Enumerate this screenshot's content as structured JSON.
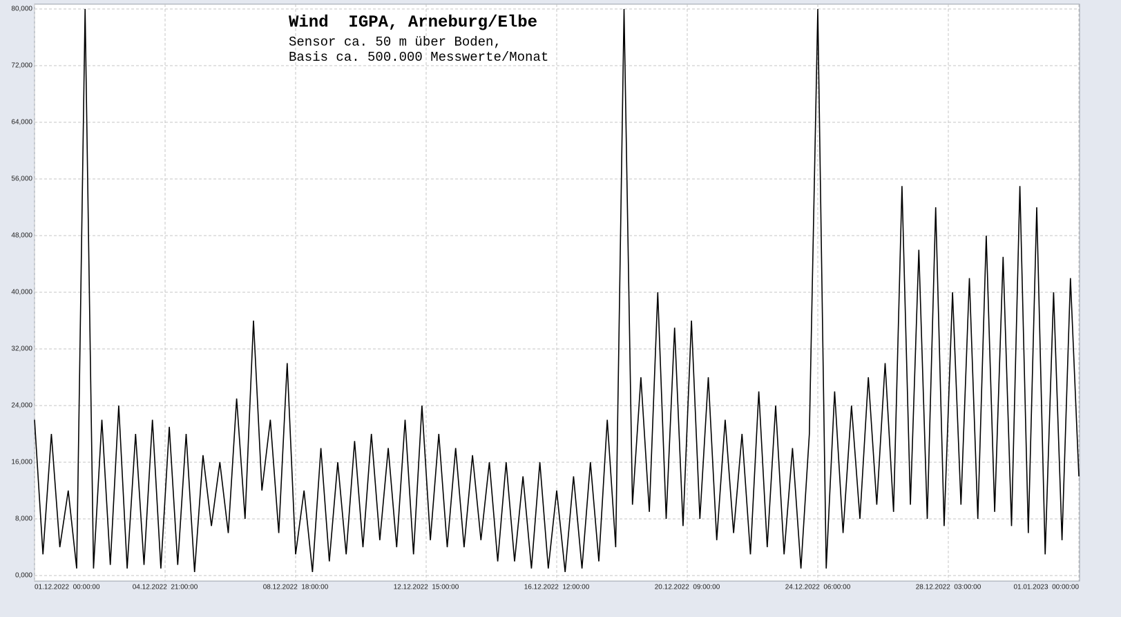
{
  "chart_data": {
    "type": "line",
    "title": "Wind  IGPA, Arneburg/Elbe",
    "subtitle": [
      "Sensor ca. 50 m über Boden,",
      "Basis ca. 500.000 Messwerte/Monat"
    ],
    "color": "#000000",
    "grid": true,
    "xlim": [
      0,
      744
    ],
    "xticks": [
      {
        "value": 0,
        "label": "01.12.2022  00:00:00"
      },
      {
        "value": 93,
        "label": "04.12.2022  21:00:00"
      },
      {
        "value": 186,
        "label": "08.12.2022  18:00:00"
      },
      {
        "value": 279,
        "label": "12.12.2022  15:00:00"
      },
      {
        "value": 372,
        "label": "16.12.2022  12:00:00"
      },
      {
        "value": 465,
        "label": "20.12.2022  09:00:00"
      },
      {
        "value": 558,
        "label": "24.12.2022  06:00:00"
      },
      {
        "value": 651,
        "label": "28.12.2022  03:00:00"
      },
      {
        "value": 744,
        "label": "01.01.2023  00:00:00"
      }
    ],
    "ylim": [
      0,
      80000
    ],
    "yticks": [
      {
        "value": 0,
        "label": "0,000"
      },
      {
        "value": 8000,
        "label": "8,000"
      },
      {
        "value": 16000,
        "label": "16,000"
      },
      {
        "value": 24000,
        "label": "24,000"
      },
      {
        "value": 32000,
        "label": "32,000"
      },
      {
        "value": 40000,
        "label": "40,000"
      },
      {
        "value": 48000,
        "label": "48,000"
      },
      {
        "value": 56000,
        "label": "56,000"
      },
      {
        "value": 64000,
        "label": "64,000"
      },
      {
        "value": 72000,
        "label": "72,000"
      },
      {
        "value": 80000,
        "label": "80,000"
      }
    ],
    "x": [
      0,
      6,
      12,
      18,
      24,
      30,
      36,
      42,
      48,
      54,
      60,
      66,
      72,
      78,
      84,
      90,
      96,
      102,
      108,
      114,
      120,
      126,
      132,
      138,
      144,
      150,
      156,
      162,
      168,
      174,
      180,
      186,
      192,
      198,
      204,
      210,
      216,
      222,
      228,
      234,
      240,
      246,
      252,
      258,
      264,
      270,
      276,
      282,
      288,
      294,
      300,
      306,
      312,
      318,
      324,
      330,
      336,
      342,
      348,
      354,
      360,
      366,
      372,
      378,
      384,
      390,
      396,
      402,
      408,
      414,
      420,
      426,
      432,
      438,
      444,
      450,
      456,
      462,
      468,
      474,
      480,
      486,
      492,
      498,
      504,
      510,
      516,
      522,
      528,
      534,
      540,
      546,
      552,
      558,
      564,
      570,
      576,
      582,
      588,
      594,
      600,
      606,
      612,
      618,
      624,
      630,
      636,
      642,
      648,
      654,
      660,
      666,
      672,
      678,
      684,
      690,
      696,
      702,
      708,
      714,
      720,
      726,
      732,
      738,
      744
    ],
    "values": [
      22000,
      3000,
      20000,
      4000,
      12000,
      1000,
      80000,
      1000,
      22000,
      1500,
      24000,
      1000,
      20000,
      1500,
      22000,
      1000,
      21000,
      1500,
      20000,
      500,
      17000,
      7000,
      16000,
      6000,
      25000,
      8000,
      36000,
      12000,
      22000,
      6000,
      30000,
      3000,
      12000,
      500,
      18000,
      2000,
      16000,
      3000,
      19000,
      4000,
      20000,
      5000,
      18000,
      4000,
      22000,
      3000,
      24000,
      5000,
      20000,
      4000,
      18000,
      4000,
      17000,
      5000,
      16000,
      2000,
      16000,
      2000,
      14000,
      1000,
      16000,
      1000,
      12000,
      500,
      14000,
      1000,
      16000,
      2000,
      22000,
      4000,
      80000,
      10000,
      28000,
      9000,
      40000,
      8000,
      35000,
      7000,
      36000,
      8000,
      28000,
      5000,
      22000,
      6000,
      20000,
      3000,
      26000,
      4000,
      24000,
      3000,
      18000,
      1000,
      20000,
      80000,
      1000,
      26000,
      6000,
      24000,
      8000,
      28000,
      10000,
      30000,
      9000,
      55000,
      10000,
      46000,
      8000,
      52000,
      7000,
      40000,
      10000,
      42000,
      8000,
      48000,
      9000,
      45000,
      7000,
      55000,
      6000,
      52000,
      3000,
      40000,
      5000,
      42000,
      14000
    ]
  }
}
